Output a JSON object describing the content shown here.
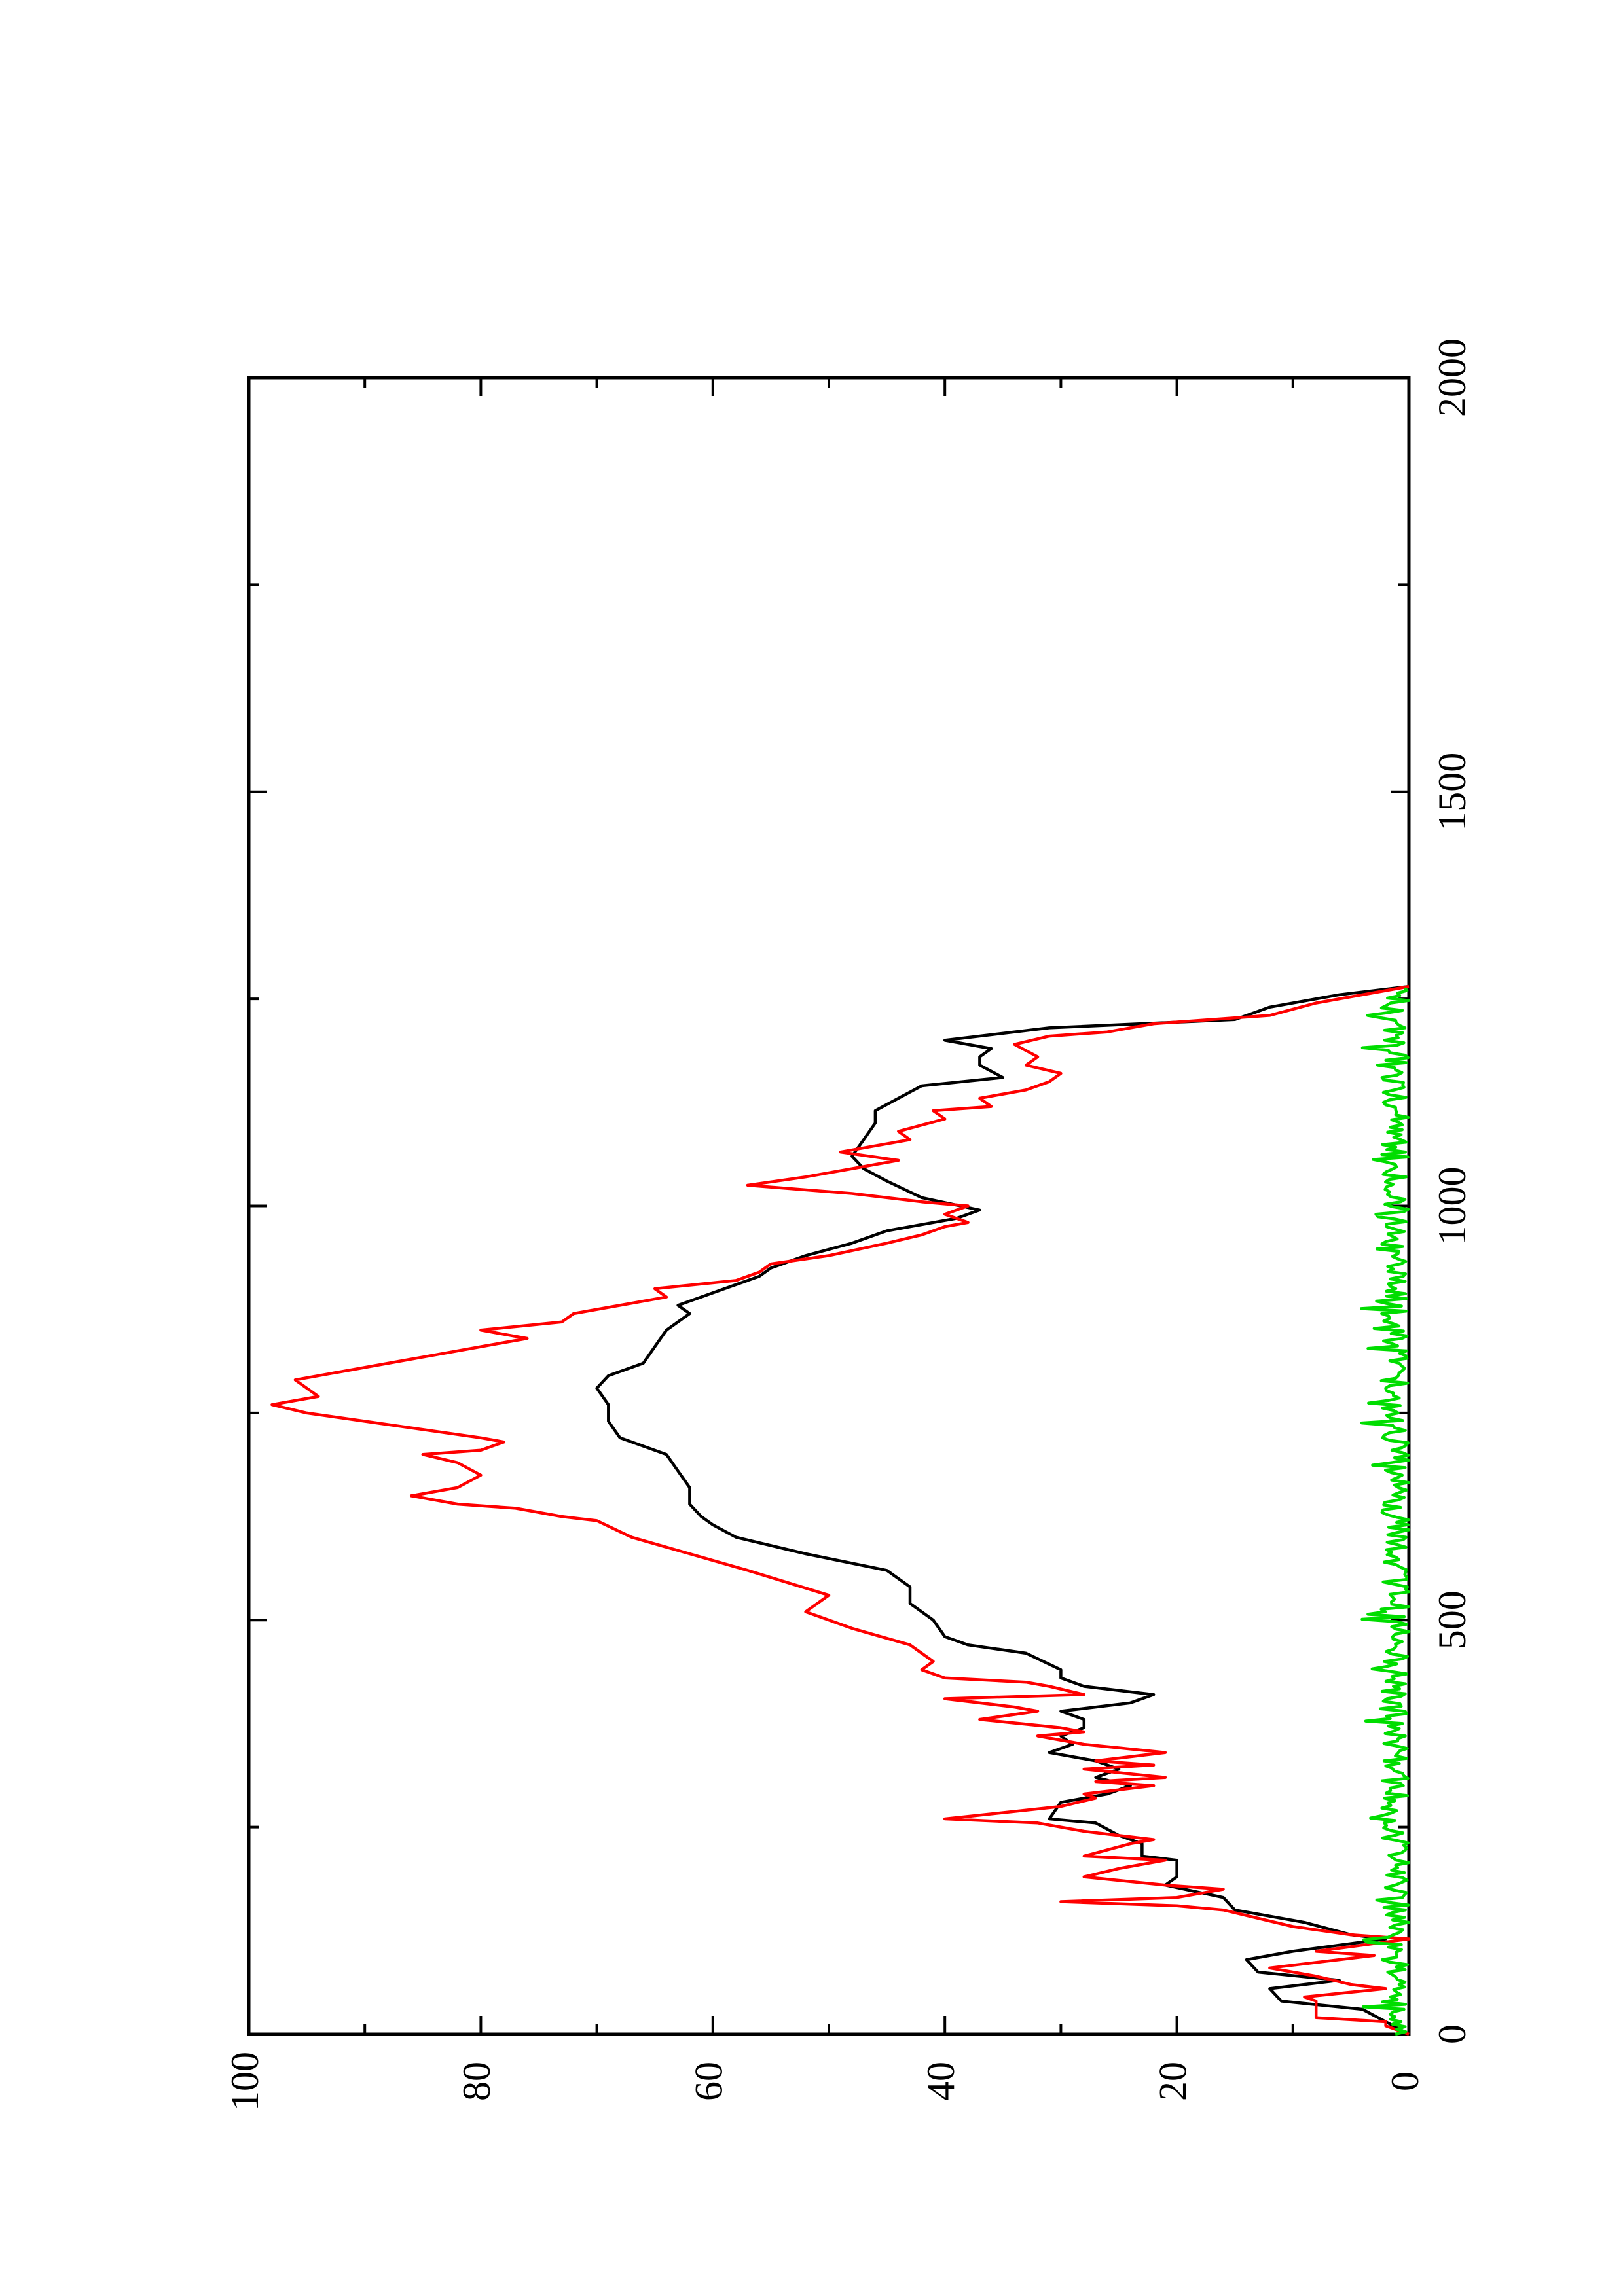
{
  "chart_data": {
    "type": "line",
    "title": "",
    "xlabel": "",
    "ylabel": "",
    "xlim": [
      0,
      2000
    ],
    "ylim": [
      0,
      100
    ],
    "x_ticks": [
      0,
      500,
      1000,
      1500,
      2000
    ],
    "y_ticks": [
      0,
      20,
      40,
      60,
      80,
      100
    ],
    "grid": false,
    "legend": "none",
    "orientation": "rotated-90-ccw",
    "series": [
      {
        "color": "#000000",
        "points": [
          [
            0,
            0
          ],
          [
            15,
            2
          ],
          [
            30,
            4
          ],
          [
            40,
            11
          ],
          [
            55,
            12
          ],
          [
            65,
            6
          ],
          [
            75,
            13
          ],
          [
            90,
            14
          ],
          [
            100,
            10
          ],
          [
            115,
            2
          ],
          [
            120,
            5
          ],
          [
            135,
            9
          ],
          [
            150,
            15
          ],
          [
            165,
            16
          ],
          [
            180,
            21
          ],
          [
            190,
            20
          ],
          [
            210,
            20
          ],
          [
            215,
            23
          ],
          [
            230,
            23
          ],
          [
            240,
            25
          ],
          [
            255,
            27
          ],
          [
            260,
            31
          ],
          [
            280,
            30
          ],
          [
            290,
            26
          ],
          [
            300,
            24
          ],
          [
            310,
            27
          ],
          [
            320,
            25
          ],
          [
            330,
            27
          ],
          [
            340,
            31
          ],
          [
            350,
            29
          ],
          [
            360,
            30
          ],
          [
            370,
            28
          ],
          [
            380,
            28
          ],
          [
            390,
            30
          ],
          [
            400,
            24
          ],
          [
            410,
            22
          ],
          [
            420,
            28
          ],
          [
            430,
            30
          ],
          [
            440,
            30
          ],
          [
            460,
            33
          ],
          [
            470,
            38
          ],
          [
            480,
            40
          ],
          [
            500,
            41
          ],
          [
            520,
            43
          ],
          [
            540,
            43
          ],
          [
            560,
            45
          ],
          [
            580,
            52
          ],
          [
            600,
            58
          ],
          [
            615,
            60
          ],
          [
            625,
            61
          ],
          [
            640,
            62
          ],
          [
            660,
            62
          ],
          [
            680,
            63
          ],
          [
            700,
            64
          ],
          [
            720,
            68
          ],
          [
            740,
            69
          ],
          [
            760,
            69
          ],
          [
            780,
            70
          ],
          [
            795,
            69
          ],
          [
            810,
            66
          ],
          [
            830,
            65
          ],
          [
            850,
            64
          ],
          [
            870,
            62
          ],
          [
            880,
            63
          ],
          [
            900,
            59
          ],
          [
            915,
            56
          ],
          [
            925,
            55
          ],
          [
            940,
            52
          ],
          [
            955,
            48
          ],
          [
            970,
            45
          ],
          [
            980,
            41
          ],
          [
            985,
            39
          ],
          [
            995,
            37
          ],
          [
            1010,
            42
          ],
          [
            1030,
            45
          ],
          [
            1045,
            47
          ],
          [
            1060,
            48
          ],
          [
            1080,
            47
          ],
          [
            1100,
            46
          ],
          [
            1115,
            46
          ],
          [
            1130,
            44
          ],
          [
            1145,
            42
          ],
          [
            1155,
            35
          ],
          [
            1170,
            37
          ],
          [
            1180,
            37
          ],
          [
            1190,
            36
          ],
          [
            1200,
            40
          ],
          [
            1215,
            31
          ],
          [
            1225,
            15
          ],
          [
            1240,
            12
          ],
          [
            1255,
            6
          ],
          [
            1265,
            0
          ]
        ]
      },
      {
        "color": "#ff0000",
        "points": [
          [
            0,
            0
          ],
          [
            10,
            2
          ],
          [
            15,
            2
          ],
          [
            20,
            8
          ],
          [
            40,
            8
          ],
          [
            45,
            9
          ],
          [
            55,
            2
          ],
          [
            60,
            5
          ],
          [
            70,
            8
          ],
          [
            80,
            12
          ],
          [
            90,
            6
          ],
          [
            95,
            3
          ],
          [
            100,
            8
          ],
          [
            115,
            0
          ],
          [
            120,
            5
          ],
          [
            130,
            10
          ],
          [
            150,
            16
          ],
          [
            155,
            20
          ],
          [
            160,
            30
          ],
          [
            165,
            20
          ],
          [
            175,
            16
          ],
          [
            180,
            21
          ],
          [
            190,
            28
          ],
          [
            200,
            25
          ],
          [
            210,
            21
          ],
          [
            215,
            28
          ],
          [
            230,
            24
          ],
          [
            235,
            22
          ],
          [
            245,
            28
          ],
          [
            255,
            32
          ],
          [
            260,
            40
          ],
          [
            275,
            30
          ],
          [
            285,
            27
          ],
          [
            290,
            28
          ],
          [
            300,
            22
          ],
          [
            305,
            27
          ],
          [
            310,
            21
          ],
          [
            320,
            28
          ],
          [
            325,
            22
          ],
          [
            330,
            27
          ],
          [
            340,
            21
          ],
          [
            350,
            28
          ],
          [
            360,
            32
          ],
          [
            365,
            28
          ],
          [
            370,
            30
          ],
          [
            380,
            37
          ],
          [
            390,
            32
          ],
          [
            395,
            34
          ],
          [
            405,
            40
          ],
          [
            410,
            28
          ],
          [
            420,
            31
          ],
          [
            425,
            33
          ],
          [
            430,
            40
          ],
          [
            440,
            42
          ],
          [
            450,
            41
          ],
          [
            470,
            43
          ],
          [
            490,
            48
          ],
          [
            510,
            52
          ],
          [
            530,
            50
          ],
          [
            560,
            57
          ],
          [
            580,
            62
          ],
          [
            600,
            67
          ],
          [
            620,
            70
          ],
          [
            625,
            73
          ],
          [
            635,
            77
          ],
          [
            640,
            82
          ],
          [
            650,
            86
          ],
          [
            660,
            82
          ],
          [
            675,
            80
          ],
          [
            690,
            82
          ],
          [
            700,
            85
          ],
          [
            705,
            80
          ],
          [
            715,
            78
          ],
          [
            720,
            80
          ],
          [
            740,
            90
          ],
          [
            750,
            95
          ],
          [
            760,
            98
          ],
          [
            770,
            94
          ],
          [
            790,
            96
          ],
          [
            800,
            92
          ],
          [
            820,
            84
          ],
          [
            830,
            80
          ],
          [
            840,
            76
          ],
          [
            850,
            80
          ],
          [
            860,
            73
          ],
          [
            870,
            72
          ],
          [
            880,
            68
          ],
          [
            890,
            64
          ],
          [
            900,
            65
          ],
          [
            910,
            58
          ],
          [
            920,
            56
          ],
          [
            930,
            55
          ],
          [
            940,
            50
          ],
          [
            955,
            45
          ],
          [
            965,
            42
          ],
          [
            975,
            40
          ],
          [
            980,
            38
          ],
          [
            990,
            40
          ],
          [
            1000,
            38
          ],
          [
            1005,
            42
          ],
          [
            1015,
            48
          ],
          [
            1025,
            57
          ],
          [
            1035,
            52
          ],
          [
            1045,
            48
          ],
          [
            1055,
            44
          ],
          [
            1065,
            49
          ],
          [
            1080,
            43
          ],
          [
            1090,
            44
          ],
          [
            1105,
            40
          ],
          [
            1115,
            41
          ],
          [
            1120,
            36
          ],
          [
            1130,
            37
          ],
          [
            1140,
            33
          ],
          [
            1150,
            31
          ],
          [
            1160,
            30
          ],
          [
            1170,
            33
          ],
          [
            1180,
            32
          ],
          [
            1195,
            34
          ],
          [
            1205,
            31
          ],
          [
            1210,
            26
          ],
          [
            1220,
            22
          ],
          [
            1230,
            12
          ],
          [
            1245,
            8
          ],
          [
            1260,
            2
          ],
          [
            1265,
            0
          ]
        ]
      },
      {
        "color": "#00dd00",
        "type": "noise-band",
        "x_range": [
          0,
          1265
        ],
        "y_range": [
          0,
          3
        ]
      }
    ]
  },
  "axes": {
    "x_tick_labels": [
      "0",
      "500",
      "1000",
      "1500",
      "2000"
    ],
    "y_tick_labels": [
      "0",
      "20",
      "40",
      "60",
      "80",
      "100"
    ]
  }
}
